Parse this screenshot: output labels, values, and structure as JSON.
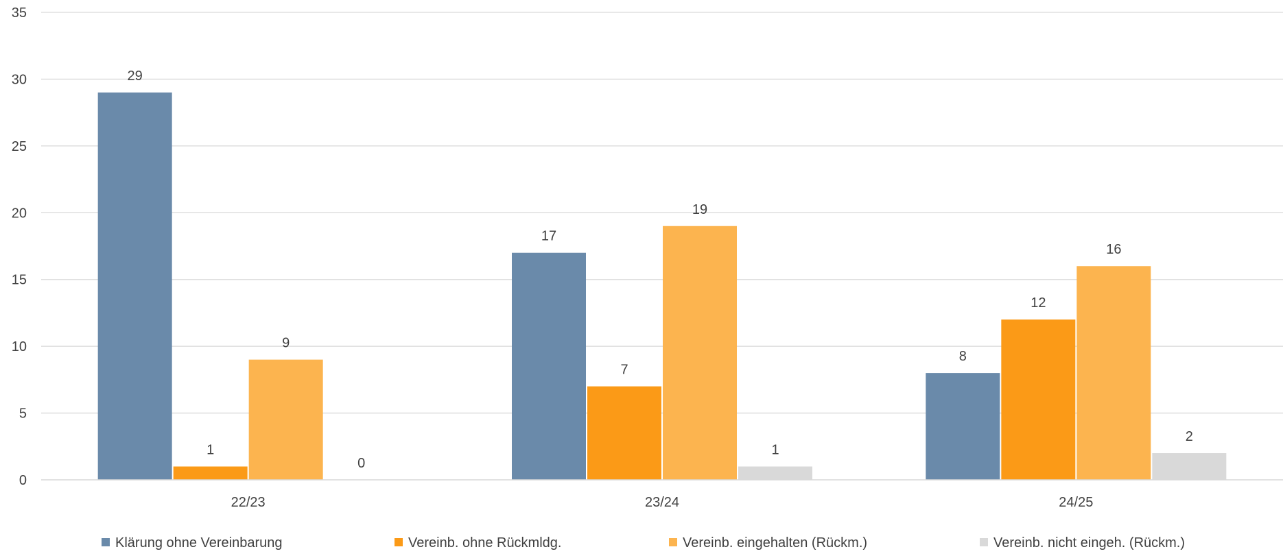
{
  "chart_data": {
    "type": "bar",
    "categories": [
      "22/23",
      "23/24",
      "24/25"
    ],
    "series": [
      {
        "name": "Klärung ohne Vereinbarung",
        "color": "#6a8aaa",
        "values": [
          29,
          17,
          8
        ]
      },
      {
        "name": "Vereinb. ohne Rückmldg.",
        "color": "#fb9a17",
        "values": [
          1,
          7,
          12
        ]
      },
      {
        "name": "Vereinb. eingehalten (Rückm.)",
        "color": "#fcb44f",
        "values": [
          9,
          19,
          16
        ]
      },
      {
        "name": "Vereinb. nicht eingeh. (Rückm.)",
        "color": "#d9d9d9",
        "values": [
          0,
          1,
          2
        ]
      }
    ],
    "yticks": [
      "0",
      "5",
      "10",
      "15",
      "20",
      "25",
      "30",
      "35"
    ],
    "ylim": [
      0,
      35
    ],
    "grid": true,
    "legend_position": "bottom"
  }
}
